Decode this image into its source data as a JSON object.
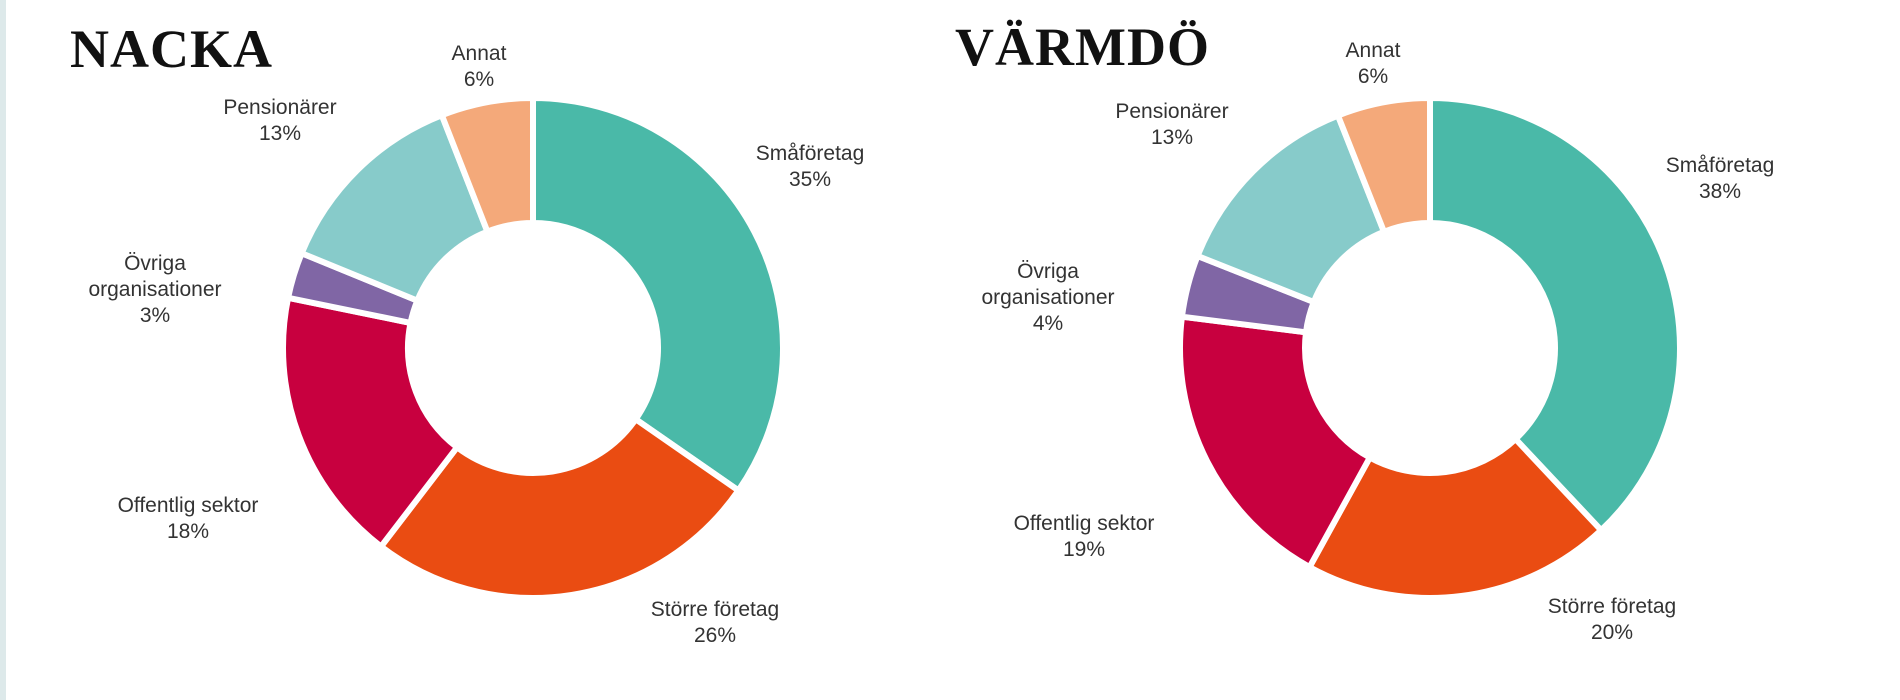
{
  "chart_data": [
    {
      "type": "pie",
      "title": "NACKA",
      "hole": 0.5,
      "categories": [
        "Småföretag",
        "Större företag",
        "Offentlig sektor",
        "Övriga organisationer",
        "Pensionärer",
        "Annat"
      ],
      "values": [
        35,
        26,
        18,
        3,
        13,
        6
      ],
      "value_labels": [
        "35%",
        "26%",
        "18%",
        "3%",
        "13%",
        "6%"
      ],
      "colors": [
        "#4ab9a8",
        "#ea4c12",
        "#c8003f",
        "#8066a5",
        "#87cbca",
        "#f4a97a"
      ]
    },
    {
      "type": "pie",
      "title": "VÄRMDÖ",
      "hole": 0.5,
      "categories": [
        "Småföretag",
        "Större företag",
        "Offentlig sektor",
        "Övriga organisationer",
        "Pensionärer",
        "Annat"
      ],
      "values": [
        38,
        20,
        19,
        4,
        13,
        6
      ],
      "value_labels": [
        "38%",
        "20%",
        "19%",
        "4%",
        "13%",
        "6%"
      ],
      "colors": [
        "#4ab9a8",
        "#ea4c12",
        "#c8003f",
        "#8066a5",
        "#87cbca",
        "#f4a97a"
      ]
    }
  ]
}
